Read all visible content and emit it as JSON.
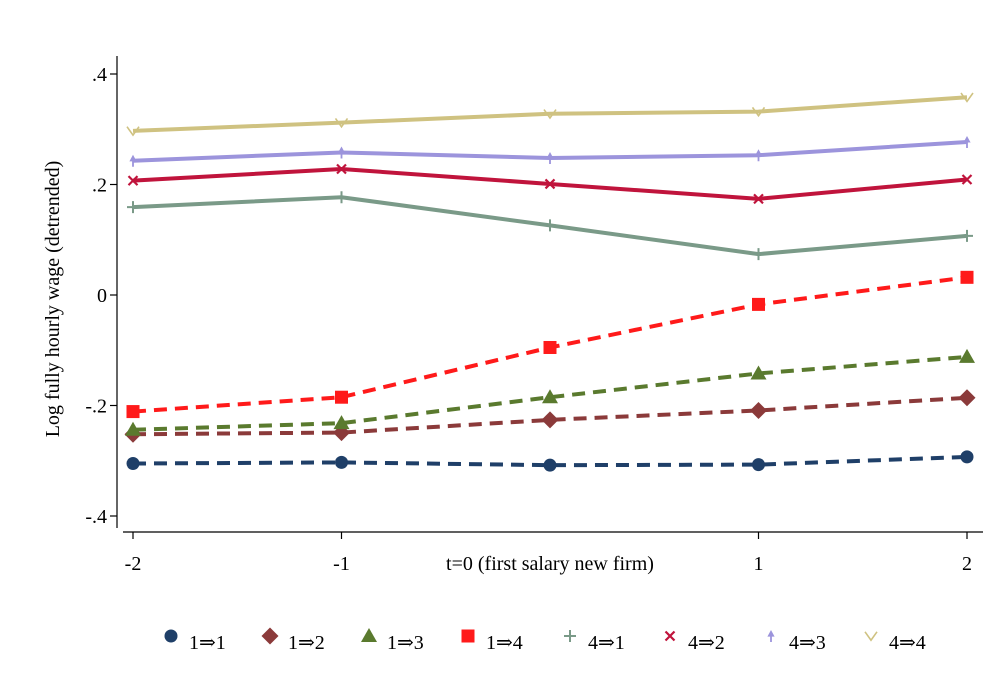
{
  "chart_data": {
    "type": "line",
    "title": "",
    "xlabel": "t=0 (first salary new firm)",
    "ylabel": "Log fully hourly wage (detrended)",
    "x": [
      -2,
      -1,
      0,
      1,
      2
    ],
    "x_tick_labels": [
      "-2",
      "-1",
      "1",
      "2"
    ],
    "x_tick_values": [
      -2,
      -1,
      1,
      2
    ],
    "xlim": [
      -2.1,
      2.1
    ],
    "y_tick_values": [
      -0.4,
      -0.2,
      0,
      0.2,
      0.4
    ],
    "y_tick_labels": [
      "-.4",
      "-.2",
      "0",
      ".2",
      ".4"
    ],
    "ylim": [
      -0.42,
      0.45
    ],
    "grid": false,
    "legend_position": "bottom",
    "series": [
      {
        "name": "1⇒1",
        "values": [
          -0.305,
          -0.303,
          -0.308,
          -0.307,
          -0.293
        ],
        "color": "#1f3f68",
        "dash": true,
        "marker": "circle"
      },
      {
        "name": "1⇒2",
        "values": [
          -0.252,
          -0.249,
          -0.226,
          -0.209,
          -0.186
        ],
        "color": "#8b3a3a",
        "dash": true,
        "marker": "diamond"
      },
      {
        "name": "1⇒3",
        "values": [
          -0.244,
          -0.232,
          -0.185,
          -0.142,
          -0.112
        ],
        "color": "#5a7a2e",
        "dash": true,
        "marker": "triangle"
      },
      {
        "name": "1⇒4",
        "values": [
          -0.211,
          -0.185,
          -0.095,
          -0.017,
          0.032
        ],
        "color": "#ff1a1a",
        "dash": true,
        "marker": "square"
      },
      {
        "name": "4⇒1",
        "values": [
          0.159,
          0.177,
          0.126,
          0.074,
          0.107
        ],
        "color": "#7a9a88",
        "dash": false,
        "marker": "plus"
      },
      {
        "name": "4⇒2",
        "values": [
          0.207,
          0.228,
          0.201,
          0.174,
          0.209
        ],
        "color": "#c0143c",
        "dash": false,
        "marker": "x"
      },
      {
        "name": "4⇒3",
        "values": [
          0.243,
          0.258,
          0.248,
          0.253,
          0.277
        ],
        "color": "#9c94dc",
        "dash": false,
        "marker": "arrow"
      },
      {
        "name": "4⇒4",
        "values": [
          0.297,
          0.312,
          0.328,
          0.332,
          0.358
        ],
        "color": "#cfc281",
        "dash": false,
        "marker": "v"
      }
    ]
  }
}
